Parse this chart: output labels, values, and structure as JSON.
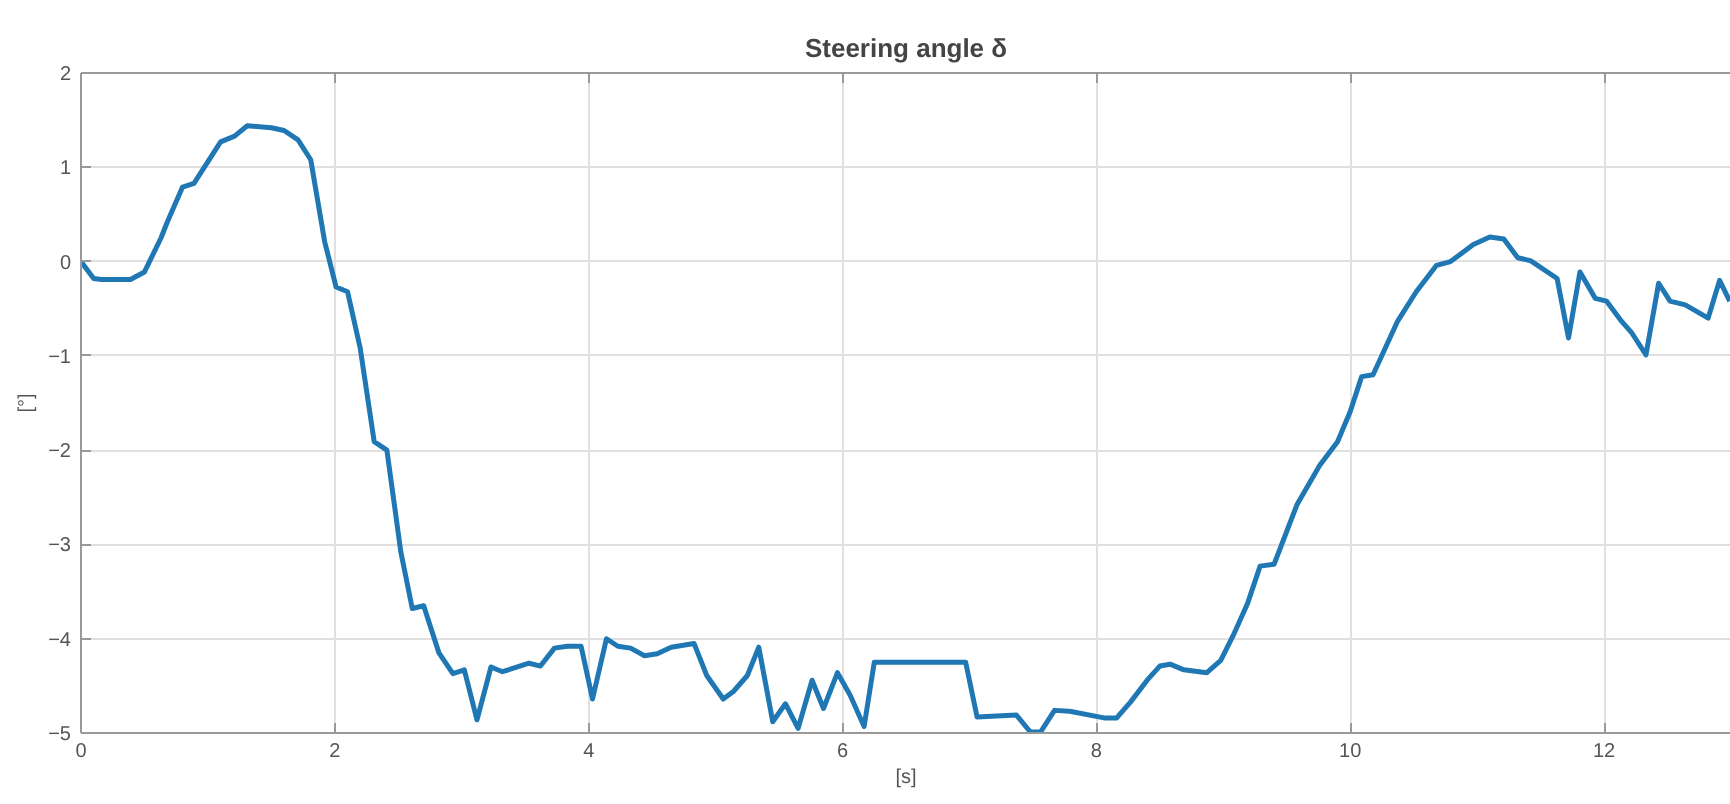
{
  "chart_data": {
    "type": "line",
    "title": "Steering angle δ",
    "xlabel": "[s]",
    "ylabel": "[°]",
    "xlim": [
      0,
      13
    ],
    "ylim": [
      -5,
      2
    ],
    "xticks": [
      0,
      2,
      4,
      6,
      8,
      10,
      12
    ],
    "yticks": [
      -5,
      -4,
      -3,
      -2,
      -1,
      0,
      1,
      2
    ],
    "grid": true,
    "marker": "none",
    "line_style": "solid",
    "series": [
      {
        "color": "#1f77b4",
        "x": [
          0,
          0.1,
          0.16,
          0.39,
          0.5,
          0.63,
          0.68,
          0.8,
          0.89,
          1.1,
          1.21,
          1.31,
          1.5,
          1.6,
          1.71,
          1.81,
          1.92,
          2.01,
          2.1,
          2.2,
          2.31,
          2.41,
          2.52,
          2.61,
          2.7,
          2.82,
          2.93,
          3.02,
          3.12,
          3.23,
          3.32,
          3.53,
          3.62,
          3.73,
          3.83,
          3.94,
          4.03,
          4.14,
          4.23,
          4.33,
          4.44,
          4.54,
          4.65,
          4.83,
          4.93,
          5.06,
          5.14,
          5.25,
          5.34,
          5.45,
          5.55,
          5.65,
          5.76,
          5.85,
          5.96,
          6.06,
          6.17,
          6.25,
          6.97,
          7.06,
          7.37,
          7.48,
          7.56,
          7.67,
          7.79,
          8.06,
          8.16,
          8.27,
          8.4,
          8.5,
          8.58,
          8.69,
          8.87,
          8.98,
          9.08,
          9.19,
          9.29,
          9.4,
          9.58,
          9.76,
          9.9,
          10.0,
          10.09,
          10.18,
          10.37,
          10.52,
          10.68,
          10.79,
          10.97,
          11.1,
          11.21,
          11.32,
          11.42,
          11.63,
          11.72,
          11.81,
          11.93,
          12.02,
          12.13,
          12.22,
          12.33,
          12.43,
          12.52,
          12.64,
          12.82,
          12.91,
          12.99
        ],
        "values": [
          0,
          -0.18,
          -0.19,
          -0.19,
          -0.11,
          0.25,
          0.42,
          0.79,
          0.83,
          1.27,
          1.33,
          1.44,
          1.42,
          1.39,
          1.29,
          1.08,
          0.21,
          -0.27,
          -0.32,
          -0.92,
          -1.91,
          -2.0,
          -3.08,
          -3.68,
          -3.65,
          -4.15,
          -4.37,
          -4.33,
          -4.86,
          -4.3,
          -4.35,
          -4.26,
          -4.29,
          -4.1,
          -4.08,
          -4.08,
          -4.64,
          -4.0,
          -4.08,
          -4.1,
          -4.18,
          -4.16,
          -4.09,
          -4.05,
          -4.39,
          -4.64,
          -4.56,
          -4.39,
          -4.09,
          -4.88,
          -4.69,
          -4.95,
          -4.44,
          -4.74,
          -4.36,
          -4.6,
          -4.93,
          -4.25,
          -4.25,
          -4.83,
          -4.81,
          -4.99,
          -4.99,
          -4.76,
          -4.77,
          -4.84,
          -4.84,
          -4.67,
          -4.44,
          -4.29,
          -4.27,
          -4.33,
          -4.36,
          -4.23,
          -3.96,
          -3.63,
          -3.23,
          -3.21,
          -2.58,
          -2.16,
          -1.91,
          -1.59,
          -1.22,
          -1.2,
          -0.64,
          -0.32,
          -0.04,
          0.0,
          0.18,
          0.26,
          0.24,
          0.04,
          0.01,
          -0.18,
          -0.81,
          -0.11,
          -0.39,
          -0.42,
          -0.62,
          -0.76,
          -0.99,
          -0.23,
          -0.42,
          -0.46,
          -0.6,
          -0.2,
          -0.42
        ]
      }
    ]
  }
}
